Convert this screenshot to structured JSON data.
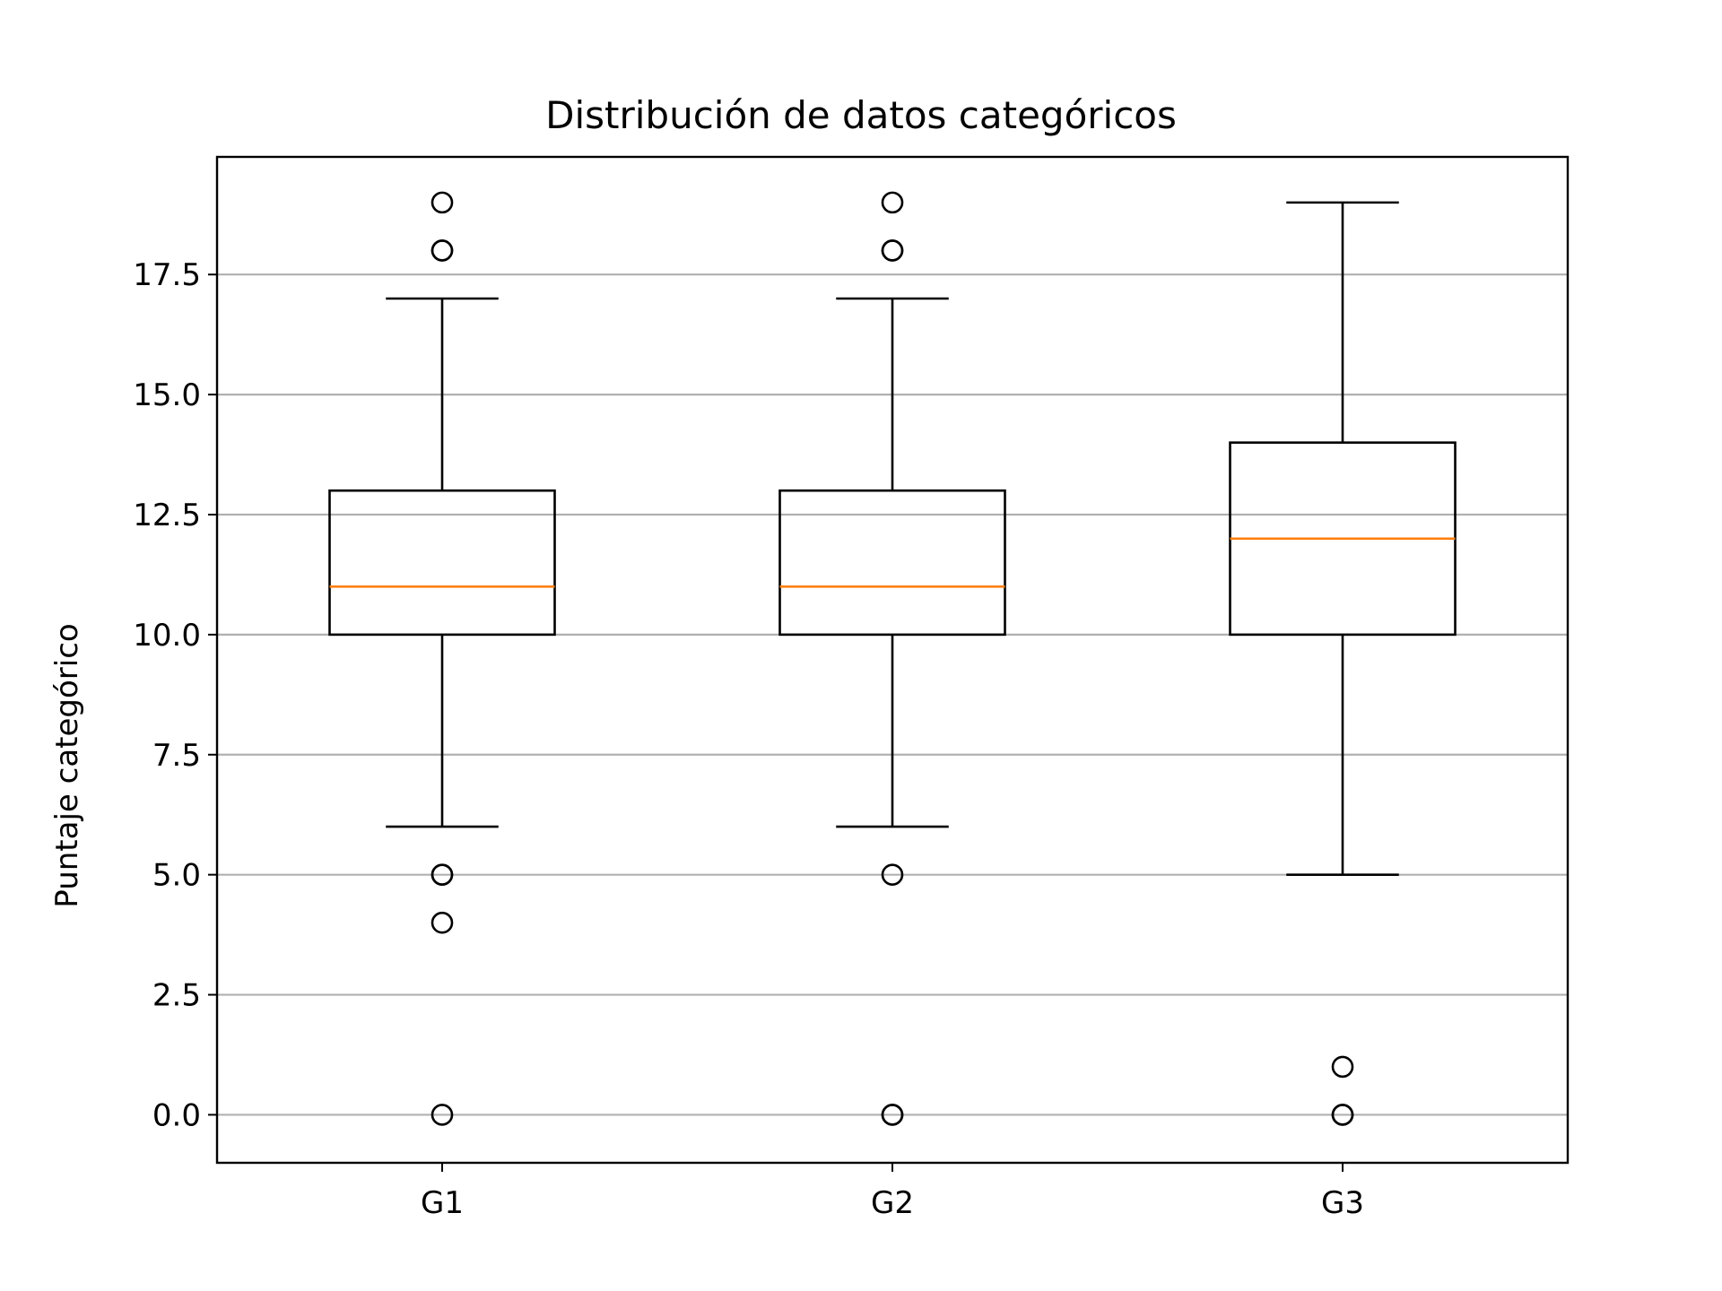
{
  "chart_data": {
    "type": "boxplot",
    "title": "Distribución de datos categóricos",
    "xlabel": "",
    "ylabel": "Puntaje categórico",
    "ylim": [
      -1.0,
      19.95
    ],
    "yticks": [
      0.0,
      2.5,
      5.0,
      7.5,
      10.0,
      12.5,
      15.0,
      17.5
    ],
    "ytick_labels": [
      "0.0",
      "2.5",
      "5.0",
      "7.5",
      "10.0",
      "12.5",
      "15.0",
      "17.5"
    ],
    "grid": {
      "y": true,
      "x": false
    },
    "categories": [
      "G1",
      "G2",
      "G3"
    ],
    "boxes": [
      {
        "category": "G1",
        "whisker_low": 6,
        "q1": 10,
        "median": 11,
        "q3": 13,
        "whisker_high": 17,
        "outliers": [
          19,
          18,
          18,
          5,
          5,
          4,
          0
        ]
      },
      {
        "category": "G2",
        "whisker_low": 6,
        "q1": 10,
        "median": 11,
        "q3": 13,
        "whisker_high": 17,
        "outliers": [
          19,
          18,
          18,
          5,
          0,
          0
        ]
      },
      {
        "category": "G3",
        "whisker_low": 5,
        "q1": 10,
        "median": 12,
        "q3": 14,
        "whisker_high": 19,
        "outliers": [
          1,
          0,
          0
        ]
      }
    ],
    "colors": {
      "box": "#000000",
      "median": "#ff7f0e",
      "grid": "#b0b0b0",
      "outlier": "#000000"
    }
  }
}
